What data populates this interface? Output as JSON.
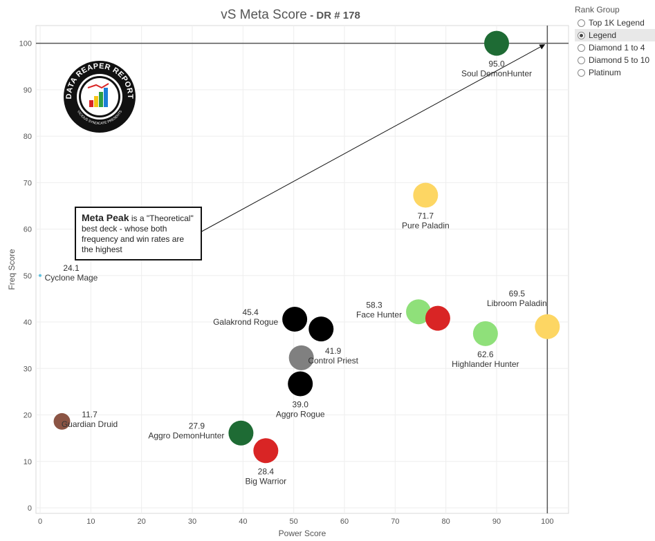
{
  "header": {
    "title": "vS Meta Score",
    "subtitle": "- DR # 178"
  },
  "legend": {
    "title": "Rank Group",
    "items": [
      {
        "label": "Top 1K Legend",
        "selected": false
      },
      {
        "label": "Legend",
        "selected": true
      },
      {
        "label": "Diamond 1 to 4",
        "selected": false
      },
      {
        "label": "Diamond 5 to 10",
        "selected": false
      },
      {
        "label": "Platinum",
        "selected": false
      }
    ]
  },
  "annotation": {
    "bold": "Meta Peak",
    "text": " is a \"Theoretical\" best deck - whose both frequency and win rates are the highest"
  },
  "logo": {
    "text": "DATA REAPER REPORT",
    "subtext": "VICIOUS SYNDICATE PRESENTS"
  },
  "colors": {
    "demonhunter": "#1e6b34",
    "paladin": "#fdd663",
    "hunter": "#8fe07a",
    "warrior": "#d92525",
    "rogue": "#000000",
    "priest": "#808080",
    "druid": "#8b5444",
    "mage": "#5fc0dd"
  },
  "chart_data": {
    "type": "scatter",
    "title": "vS Meta Score - DR # 178",
    "xlabel": "Power Score",
    "ylabel": "Freq Score",
    "xlim": [
      0,
      105
    ],
    "ylim": [
      0,
      105
    ],
    "xticks": [
      0,
      10,
      20,
      30,
      40,
      50,
      60,
      70,
      80,
      90,
      100
    ],
    "yticks": [
      0,
      10,
      20,
      30,
      40,
      50,
      60,
      70,
      80,
      90,
      100
    ],
    "reference_lines": {
      "x": 100,
      "y": 100
    },
    "grid": true,
    "points": [
      {
        "name": "Soul DemonHunter",
        "score": "95.0",
        "x": 90.0,
        "y": 100.0,
        "color": "#1e6b34"
      },
      {
        "name": "Pure Paladin",
        "score": "71.7",
        "x": 76.0,
        "y": 67.3,
        "color": "#fdd663"
      },
      {
        "name": "Libroom Paladin",
        "score": "69.5",
        "x": 100.0,
        "y": 39.0,
        "color": "#fdd663"
      },
      {
        "name": "Highlander Hunter",
        "score": "62.6",
        "x": 87.8,
        "y": 37.5,
        "color": "#8fe07a"
      },
      {
        "name": "Face Hunter",
        "score": "58.3",
        "x": 74.6,
        "y": 42.2,
        "color": "#8fe07a"
      },
      {
        "name": "Big Warrior",
        "score": "28.4",
        "x": 44.5,
        "y": 12.3,
        "color": "#d92525"
      },
      {
        "name": "Galakrond Rogue",
        "score": "45.4",
        "x": 50.2,
        "y": 40.6,
        "color": "#000000"
      },
      {
        "name": "Control Priest",
        "score": "41.9",
        "x": 51.5,
        "y": 32.3,
        "color": "#808080"
      },
      {
        "name": "Aggro Rogue",
        "score": "39.0",
        "x": 51.3,
        "y": 26.7,
        "color": "#000000"
      },
      {
        "name": "Aggro DemonHunter",
        "score": "27.9",
        "x": 39.6,
        "y": 16.1,
        "color": "#1e6b34"
      },
      {
        "name": "Guardian Druid",
        "score": "11.7",
        "x": 4.3,
        "y": 18.6,
        "color": "#8b5444"
      },
      {
        "name": "Cyclone Mage",
        "score": "24.1",
        "x": 0.0,
        "y": 50.0,
        "color": "#5fc0dd"
      },
      {
        "name": "",
        "score": "",
        "x": 55.4,
        "y": 38.5,
        "color": "#000000"
      },
      {
        "name": "",
        "score": "",
        "x": 78.4,
        "y": 40.8,
        "color": "#d92525"
      }
    ]
  }
}
